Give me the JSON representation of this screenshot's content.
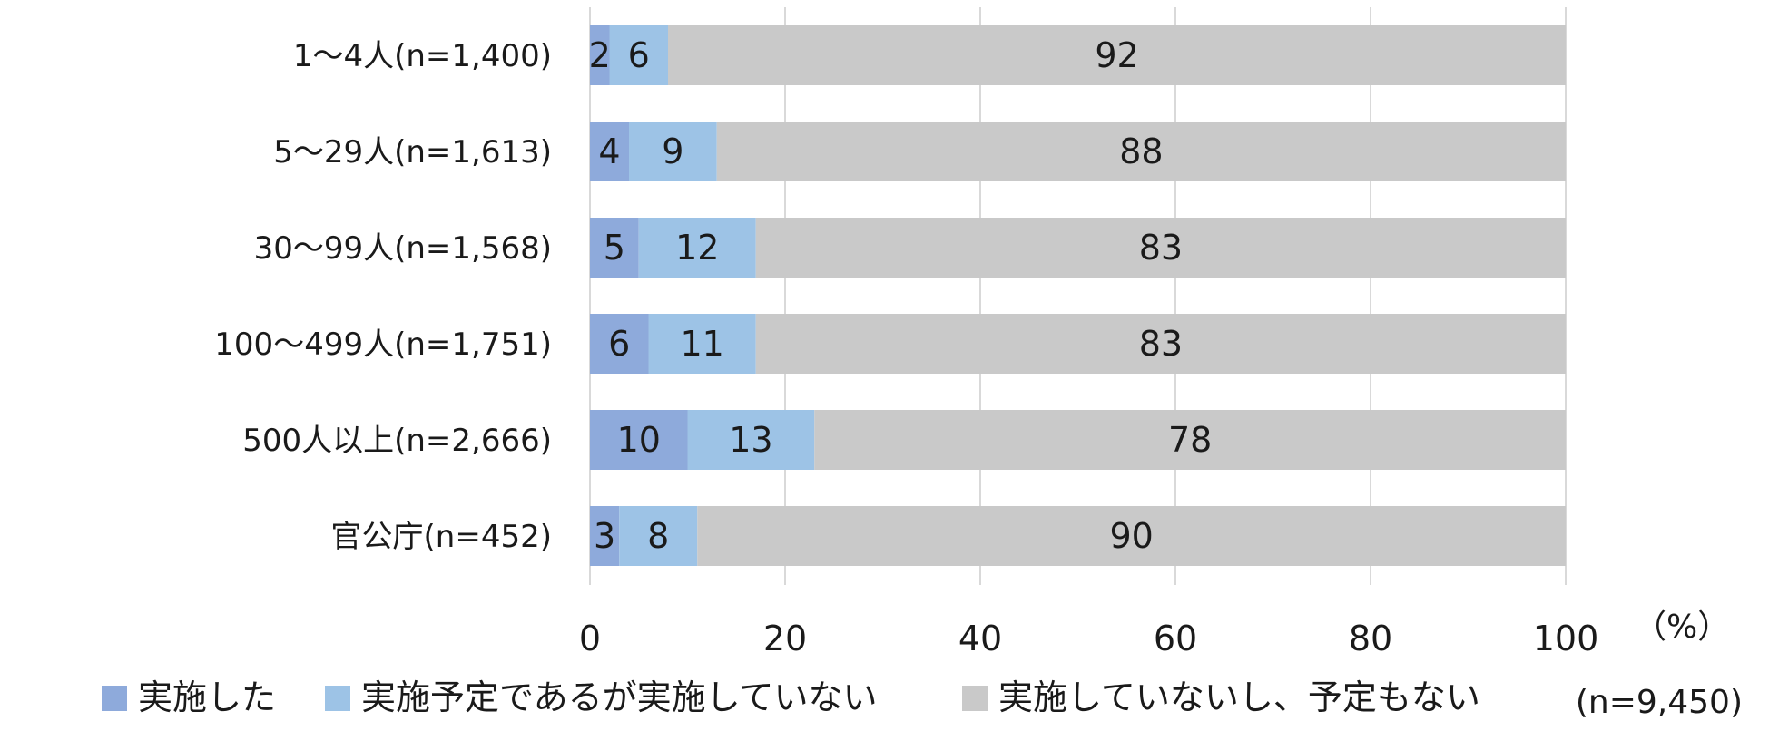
{
  "chart_data": {
    "type": "bar",
    "orientation": "horizontal",
    "stacked": true,
    "categories": [
      "1～4人(n=1,400)",
      "5～29人(n=1,613)",
      "30～99人(n=1,568)",
      "100～499人(n=1,751)",
      "500人以上(n=2,666)",
      "官公庁(n=452)"
    ],
    "series": [
      {
        "name": "実施した",
        "color": "#8eaadb",
        "values": [
          2,
          4,
          5,
          6,
          10,
          3
        ]
      },
      {
        "name": "実施予定であるが実施していない",
        "color": "#9dc3e6",
        "values": [
          6,
          9,
          12,
          11,
          13,
          8
        ]
      },
      {
        "name": "実施していないし、予定もない",
        "color": "#c9c9c9",
        "values": [
          92,
          88,
          83,
          83,
          78,
          90
        ]
      }
    ],
    "xlim": [
      0,
      100
    ],
    "xticks": [
      0,
      20,
      40,
      60,
      80,
      100
    ],
    "x_unit_label": "（%）",
    "total_n_label": "(n=9,450)",
    "grid": true,
    "legend_position": "bottom"
  }
}
